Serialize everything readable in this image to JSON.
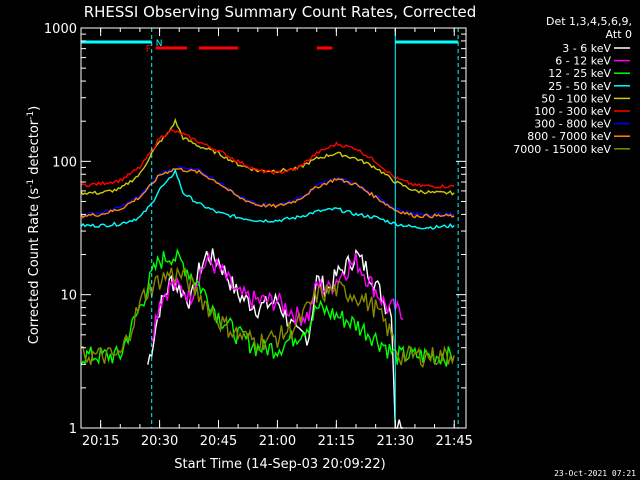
{
  "chart_data": {
    "type": "line",
    "title": "RHESSI Observing Summary Count Rates, Corrected",
    "xlabel": "Start Time (14-Sep-03 20:09:22)",
    "ylabel": "Corrected Count Rate (s⁻¹ detector⁻¹)",
    "ylabel_main": "Corrected Count Rate (s",
    "ylabel_sup1": "-1",
    "ylabel_mid": " detector",
    "ylabel_sup2": "-1",
    "ylabel_end": ")",
    "yscale": "log",
    "ylim": [
      1,
      1000
    ],
    "xlim": [
      "20:10",
      "21:48"
    ],
    "x_ticks": [
      "20:15",
      "20:30",
      "20:45",
      "21:00",
      "21:15",
      "21:30",
      "21:45"
    ],
    "y_ticks": [
      "1",
      "10",
      "100",
      "1000"
    ],
    "legend_header": [
      "Det 1,3,4,5,6,9,",
      "Att 0"
    ],
    "legend_position": "right",
    "timestamp": "23-Oct-2021 07:21",
    "flags": {
      "night_label": "N",
      "night_intervals": [
        [
          "20:10",
          "20:28"
        ],
        [
          "21:30",
          "21:46"
        ]
      ],
      "flare_label": "F",
      "flare_intervals": [
        [
          "20:29",
          "20:37"
        ],
        [
          "20:40",
          "20:50"
        ],
        [
          "21:10",
          "21:14"
        ]
      ]
    },
    "markers": {
      "solid_lines": [
        "20:10",
        "21:30"
      ],
      "dashed_lines": [
        "20:28",
        "21:46"
      ]
    },
    "series": [
      {
        "name": "3 - 6 keV",
        "color": "#ffffff",
        "x": [
          "20:10",
          "20:20",
          "20:25",
          "20:27",
          "20:28",
          "20:30",
          "20:33",
          "20:38",
          "20:40",
          "20:42",
          "20:45",
          "20:50",
          "20:55",
          "21:00",
          "21:05",
          "21:08",
          "21:10",
          "21:13",
          "21:15",
          "21:18",
          "21:20",
          "21:24",
          "21:28",
          "21:29",
          "21:30",
          "21:32",
          "21:35"
        ],
        "values": [
          null,
          null,
          null,
          3.0,
          4.0,
          8.0,
          13.0,
          9.0,
          15.0,
          20.0,
          18.0,
          10.0,
          8.0,
          9.0,
          5.0,
          5.0,
          13.0,
          11.0,
          14.0,
          17.0,
          20.0,
          14.0,
          8.0,
          8.0,
          1.1,
          1.0,
          null
        ]
      },
      {
        "name": "6 - 12 keV",
        "color": "#ff00ff",
        "x": [
          "20:28",
          "20:30",
          "20:33",
          "20:38",
          "20:40",
          "20:42",
          "20:45",
          "20:50",
          "20:55",
          "21:00",
          "21:05",
          "21:08",
          "21:10",
          "21:13",
          "21:15",
          "21:18",
          "21:20",
          "21:24",
          "21:28",
          "21:30",
          "21:32"
        ],
        "values": [
          5.0,
          9.0,
          12.0,
          10.0,
          14.0,
          18.0,
          16.0,
          10.0,
          9.0,
          9.0,
          7.0,
          7.0,
          12.0,
          11.0,
          13.0,
          16.0,
          18.0,
          12.0,
          8.0,
          8.0,
          6.5
        ]
      },
      {
        "name": "12 - 25 keV",
        "color": "#00ff00",
        "x": [
          "20:10",
          "20:20",
          "20:22",
          "20:25",
          "20:28",
          "20:30",
          "20:33",
          "20:36",
          "20:40",
          "20:45",
          "20:50",
          "20:55",
          "21:00",
          "21:05",
          "21:08",
          "21:10",
          "21:15",
          "21:20",
          "21:24",
          "21:28",
          "21:30",
          "21:32",
          "21:35",
          "21:45"
        ],
        "values": [
          3.5,
          3.5,
          5.0,
          8.0,
          14.0,
          18.0,
          20.0,
          17.0,
          12.0,
          7.0,
          5.0,
          4.0,
          4.0,
          5.0,
          6.0,
          8.0,
          7.0,
          6.0,
          5.0,
          4.0,
          3.5,
          3.5,
          3.5,
          3.5
        ]
      },
      {
        "name": "25 - 50 keV",
        "color": "#00ffff",
        "x": [
          "20:10",
          "20:15",
          "20:20",
          "20:25",
          "20:28",
          "20:30",
          "20:32",
          "20:34",
          "20:36",
          "20:40",
          "20:45",
          "20:50",
          "20:55",
          "21:00",
          "21:05",
          "21:10",
          "21:15",
          "21:20",
          "21:25",
          "21:30",
          "21:35",
          "21:40",
          "21:45"
        ],
        "values": [
          33,
          33,
          34,
          38,
          48,
          62,
          70,
          85,
          58,
          48,
          41,
          38,
          36,
          36,
          38,
          42,
          44,
          40,
          38,
          34,
          32,
          32,
          33
        ]
      },
      {
        "name": "50 - 100 keV",
        "color": "#cccc00",
        "x": [
          "20:10",
          "20:15",
          "20:20",
          "20:25",
          "20:28",
          "20:30",
          "20:32",
          "20:34",
          "20:36",
          "20:40",
          "20:45",
          "20:50",
          "20:55",
          "21:00",
          "21:05",
          "21:10",
          "21:15",
          "21:20",
          "21:25",
          "21:30",
          "21:35",
          "21:40",
          "21:45"
        ],
        "values": [
          58,
          58,
          62,
          80,
          115,
          140,
          160,
          200,
          150,
          130,
          115,
          95,
          85,
          85,
          88,
          105,
          115,
          105,
          90,
          70,
          60,
          58,
          58
        ]
      },
      {
        "name": "100 - 300 keV",
        "color": "#ff0000",
        "x": [
          "20:10",
          "20:15",
          "20:20",
          "20:25",
          "20:28",
          "20:30",
          "20:33",
          "20:36",
          "20:40",
          "20:45",
          "20:50",
          "20:55",
          "21:00",
          "21:05",
          "21:10",
          "21:15",
          "21:20",
          "21:25",
          "21:30",
          "21:35",
          "21:40",
          "21:45"
        ],
        "values": [
          66,
          68,
          72,
          90,
          120,
          150,
          170,
          160,
          140,
          120,
          100,
          85,
          82,
          88,
          115,
          135,
          125,
          100,
          75,
          66,
          65,
          65
        ]
      },
      {
        "name": "300 - 800 keV",
        "color": "#0000ff",
        "x": [
          "20:10",
          "20:15",
          "20:20",
          "20:25",
          "20:28",
          "20:30",
          "20:34",
          "20:40",
          "20:45",
          "20:50",
          "20:55",
          "21:00",
          "21:05",
          "21:10",
          "21:15",
          "21:20",
          "21:25",
          "21:30",
          "21:35",
          "21:40",
          "21:45"
        ],
        "values": [
          40,
          41,
          45,
          55,
          68,
          80,
          90,
          85,
          70,
          55,
          48,
          47,
          52,
          65,
          75,
          68,
          55,
          44,
          40,
          40,
          40
        ]
      },
      {
        "name": "800 - 7000 keV",
        "color": "#ff8800",
        "x": [
          "20:10",
          "20:15",
          "20:20",
          "20:25",
          "20:28",
          "20:30",
          "20:34",
          "20:40",
          "20:45",
          "20:50",
          "20:55",
          "21:00",
          "21:05",
          "21:10",
          "21:15",
          "21:20",
          "21:25",
          "21:30",
          "21:35",
          "21:40",
          "21:45"
        ],
        "values": [
          39,
          40,
          44,
          54,
          67,
          79,
          88,
          83,
          69,
          54,
          47,
          46,
          51,
          64,
          74,
          67,
          54,
          43,
          39,
          39,
          39
        ]
      },
      {
        "name": "7000 - 15000 keV",
        "color": "#888800",
        "x": [
          "20:10",
          "20:20",
          "20:23",
          "20:26",
          "20:30",
          "20:33",
          "20:36",
          "20:40",
          "20:45",
          "20:50",
          "20:55",
          "21:00",
          "21:05",
          "21:10",
          "21:15",
          "21:20",
          "21:25",
          "21:29",
          "21:31",
          "21:35",
          "21:45"
        ],
        "values": [
          3.5,
          3.5,
          6.0,
          10.0,
          13.0,
          14.5,
          14.0,
          10.0,
          6.5,
          5.0,
          4.5,
          4.8,
          6.0,
          10.0,
          11.0,
          10.0,
          8.0,
          5.0,
          3.5,
          3.5,
          3.5
        ]
      }
    ]
  }
}
